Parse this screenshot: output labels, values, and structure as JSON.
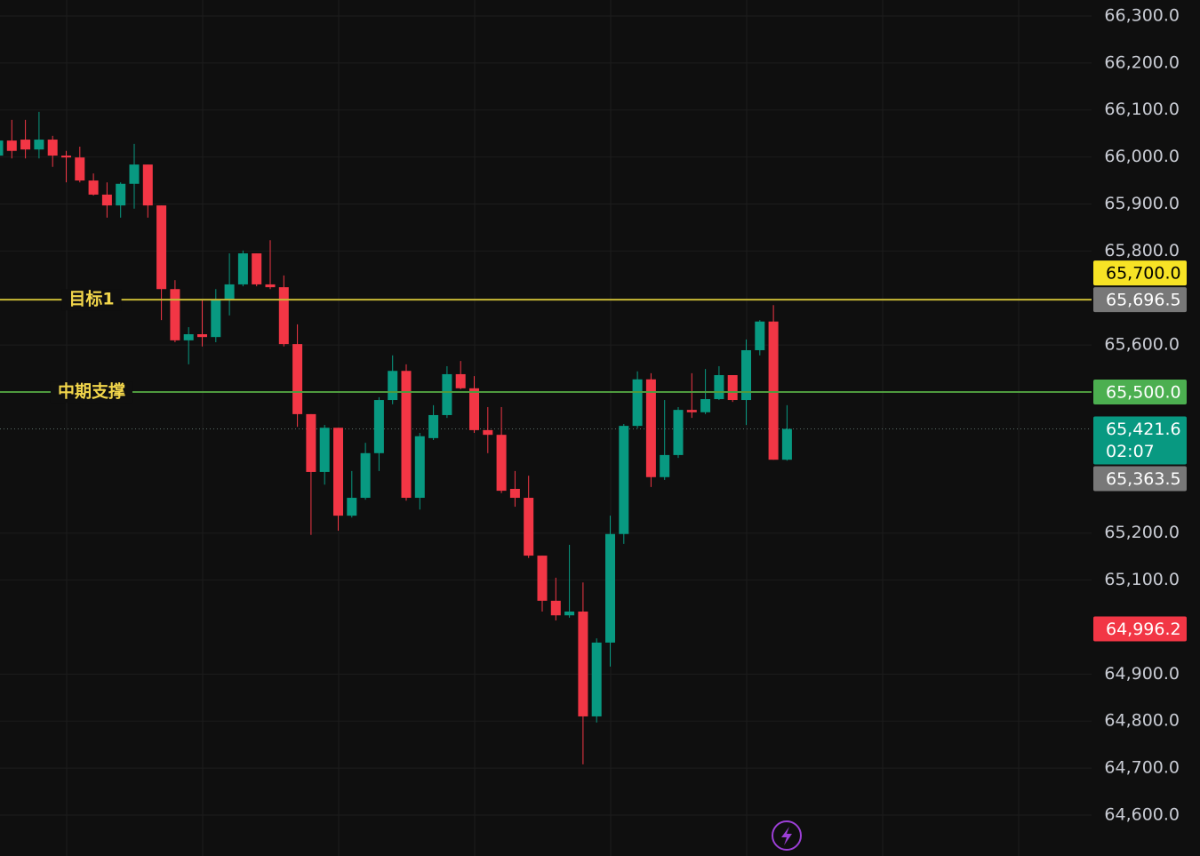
{
  "chart_data": {
    "type": "candlestick",
    "ylim": [
      64513,
      66334
    ],
    "yticks": [
      {
        "value": 66300,
        "label": "66,300.0"
      },
      {
        "value": 66200,
        "label": "66,200.0"
      },
      {
        "value": 66100,
        "label": "66,100.0"
      },
      {
        "value": 66000,
        "label": "66,000.0"
      },
      {
        "value": 65900,
        "label": "65,900.0"
      },
      {
        "value": 65800,
        "label": "65,800.0"
      },
      {
        "value": 65600,
        "label": "65,600.0"
      },
      {
        "value": 65200,
        "label": "65,200.0"
      },
      {
        "value": 65100,
        "label": "65,100.0"
      },
      {
        "value": 64900,
        "label": "64,900.0"
      },
      {
        "value": 64800,
        "label": "64,800.0"
      },
      {
        "value": 64700,
        "label": "64,700.0"
      },
      {
        "value": 64600,
        "label": "64,600.0"
      }
    ],
    "grid": true,
    "up_color": "#089981",
    "down_color": "#f23645",
    "open": [
      66003,
      66035,
      66037,
      66016,
      66037,
      66003,
      65999,
      65950,
      65920,
      65897,
      65943,
      65984,
      65897,
      65719,
      65610,
      65623,
      65617,
      65697,
      65729,
      65795,
      65729,
      65723,
      65602,
      65453,
      65330,
      65424,
      65237,
      65275,
      65370,
      65483,
      65545,
      65275,
      65402,
      65451,
      65538,
      65508,
      65419,
      65409,
      65294,
      65275,
      65152,
      65056,
      65025,
      65033,
      64810,
      64967,
      65198,
      65428,
      65527,
      65319,
      65366,
      65462,
      65457,
      65485,
      65536,
      65483,
      65589,
      65650,
      65356
    ],
    "high": [
      66050,
      66079,
      66079,
      66096,
      66045,
      66013,
      66022,
      65965,
      65946,
      65946,
      66028,
      65984,
      65897,
      65738,
      65638,
      65695,
      65719,
      65795,
      65801,
      65795,
      65823,
      65748,
      65644,
      65453,
      65430,
      65424,
      65332,
      65392,
      65489,
      65578,
      65559,
      65413,
      65472,
      65555,
      65566,
      65534,
      65468,
      65468,
      65332,
      65322,
      65152,
      65105,
      65175,
      65095,
      64976,
      65237,
      65432,
      65544,
      65540,
      65483,
      65468,
      65540,
      65549,
      65555,
      65536,
      65612,
      65653,
      65685,
      65472
    ],
    "low": [
      65997,
      65997,
      65997,
      65997,
      65979,
      65946,
      65946,
      65918,
      65871,
      65871,
      65890,
      65871,
      65653,
      65606,
      65559,
      65597,
      65606,
      65663,
      65725,
      65725,
      65719,
      65597,
      65426,
      65196,
      65303,
      65205,
      65233,
      65271,
      65332,
      65474,
      65269,
      65250,
      65398,
      65445,
      65506,
      65413,
      65370,
      65285,
      65256,
      65147,
      65033,
      65014,
      65020,
      64708,
      64797,
      64916,
      65177,
      65423,
      65298,
      65313,
      65360,
      65445,
      65453,
      65483,
      65479,
      65430,
      65578,
      65356,
      65354
    ],
    "close": [
      66035,
      66013,
      66016,
      66037,
      66003,
      65999,
      65950,
      65920,
      65897,
      65943,
      65984,
      65897,
      65719,
      65610,
      65623,
      65617,
      65697,
      65729,
      65795,
      65729,
      65723,
      65602,
      65453,
      65330,
      65424,
      65237,
      65275,
      65370,
      65483,
      65545,
      65275,
      65406,
      65451,
      65538,
      65508,
      65419,
      65409,
      65290,
      65275,
      65152,
      65056,
      65025,
      65033,
      64810,
      64967,
      65198,
      65428,
      65527,
      65319,
      65366,
      65462,
      65457,
      65485,
      65536,
      65483,
      65589,
      65650,
      65356,
      65421.6
    ],
    "lines": [
      {
        "label": "目标1",
        "value": 65696.5,
        "color": "#c8b936",
        "label_color": "#f2d64b"
      },
      {
        "label": "中期支撑",
        "value": 65500,
        "color": "#4e9a3e",
        "label_color": "#f2d64b"
      }
    ],
    "price_labels": [
      {
        "value": 65696.5,
        "label": "65,696.5",
        "color": "#787878",
        "text_color": "#ffffff"
      },
      {
        "value": 65500,
        "label": "65,500.0",
        "color": "#4caf50",
        "text_color": "#ffffff"
      },
      {
        "value": 65421.6,
        "label": "65,421.6",
        "sublabel": "02:07",
        "color": "#089981",
        "text_color": "#ffffff"
      },
      {
        "value": 64996.2,
        "label": "64,996.2",
        "color": "#f23645",
        "text_color": "#ffffff"
      },
      {
        "value": 65700,
        "label": "65,700.0",
        "color": "#f7e325",
        "text_color": "#000000"
      },
      {
        "value": 65363.5,
        "label": "65,363.5",
        "color": "#787878",
        "text_color": "#ffffff"
      }
    ]
  }
}
